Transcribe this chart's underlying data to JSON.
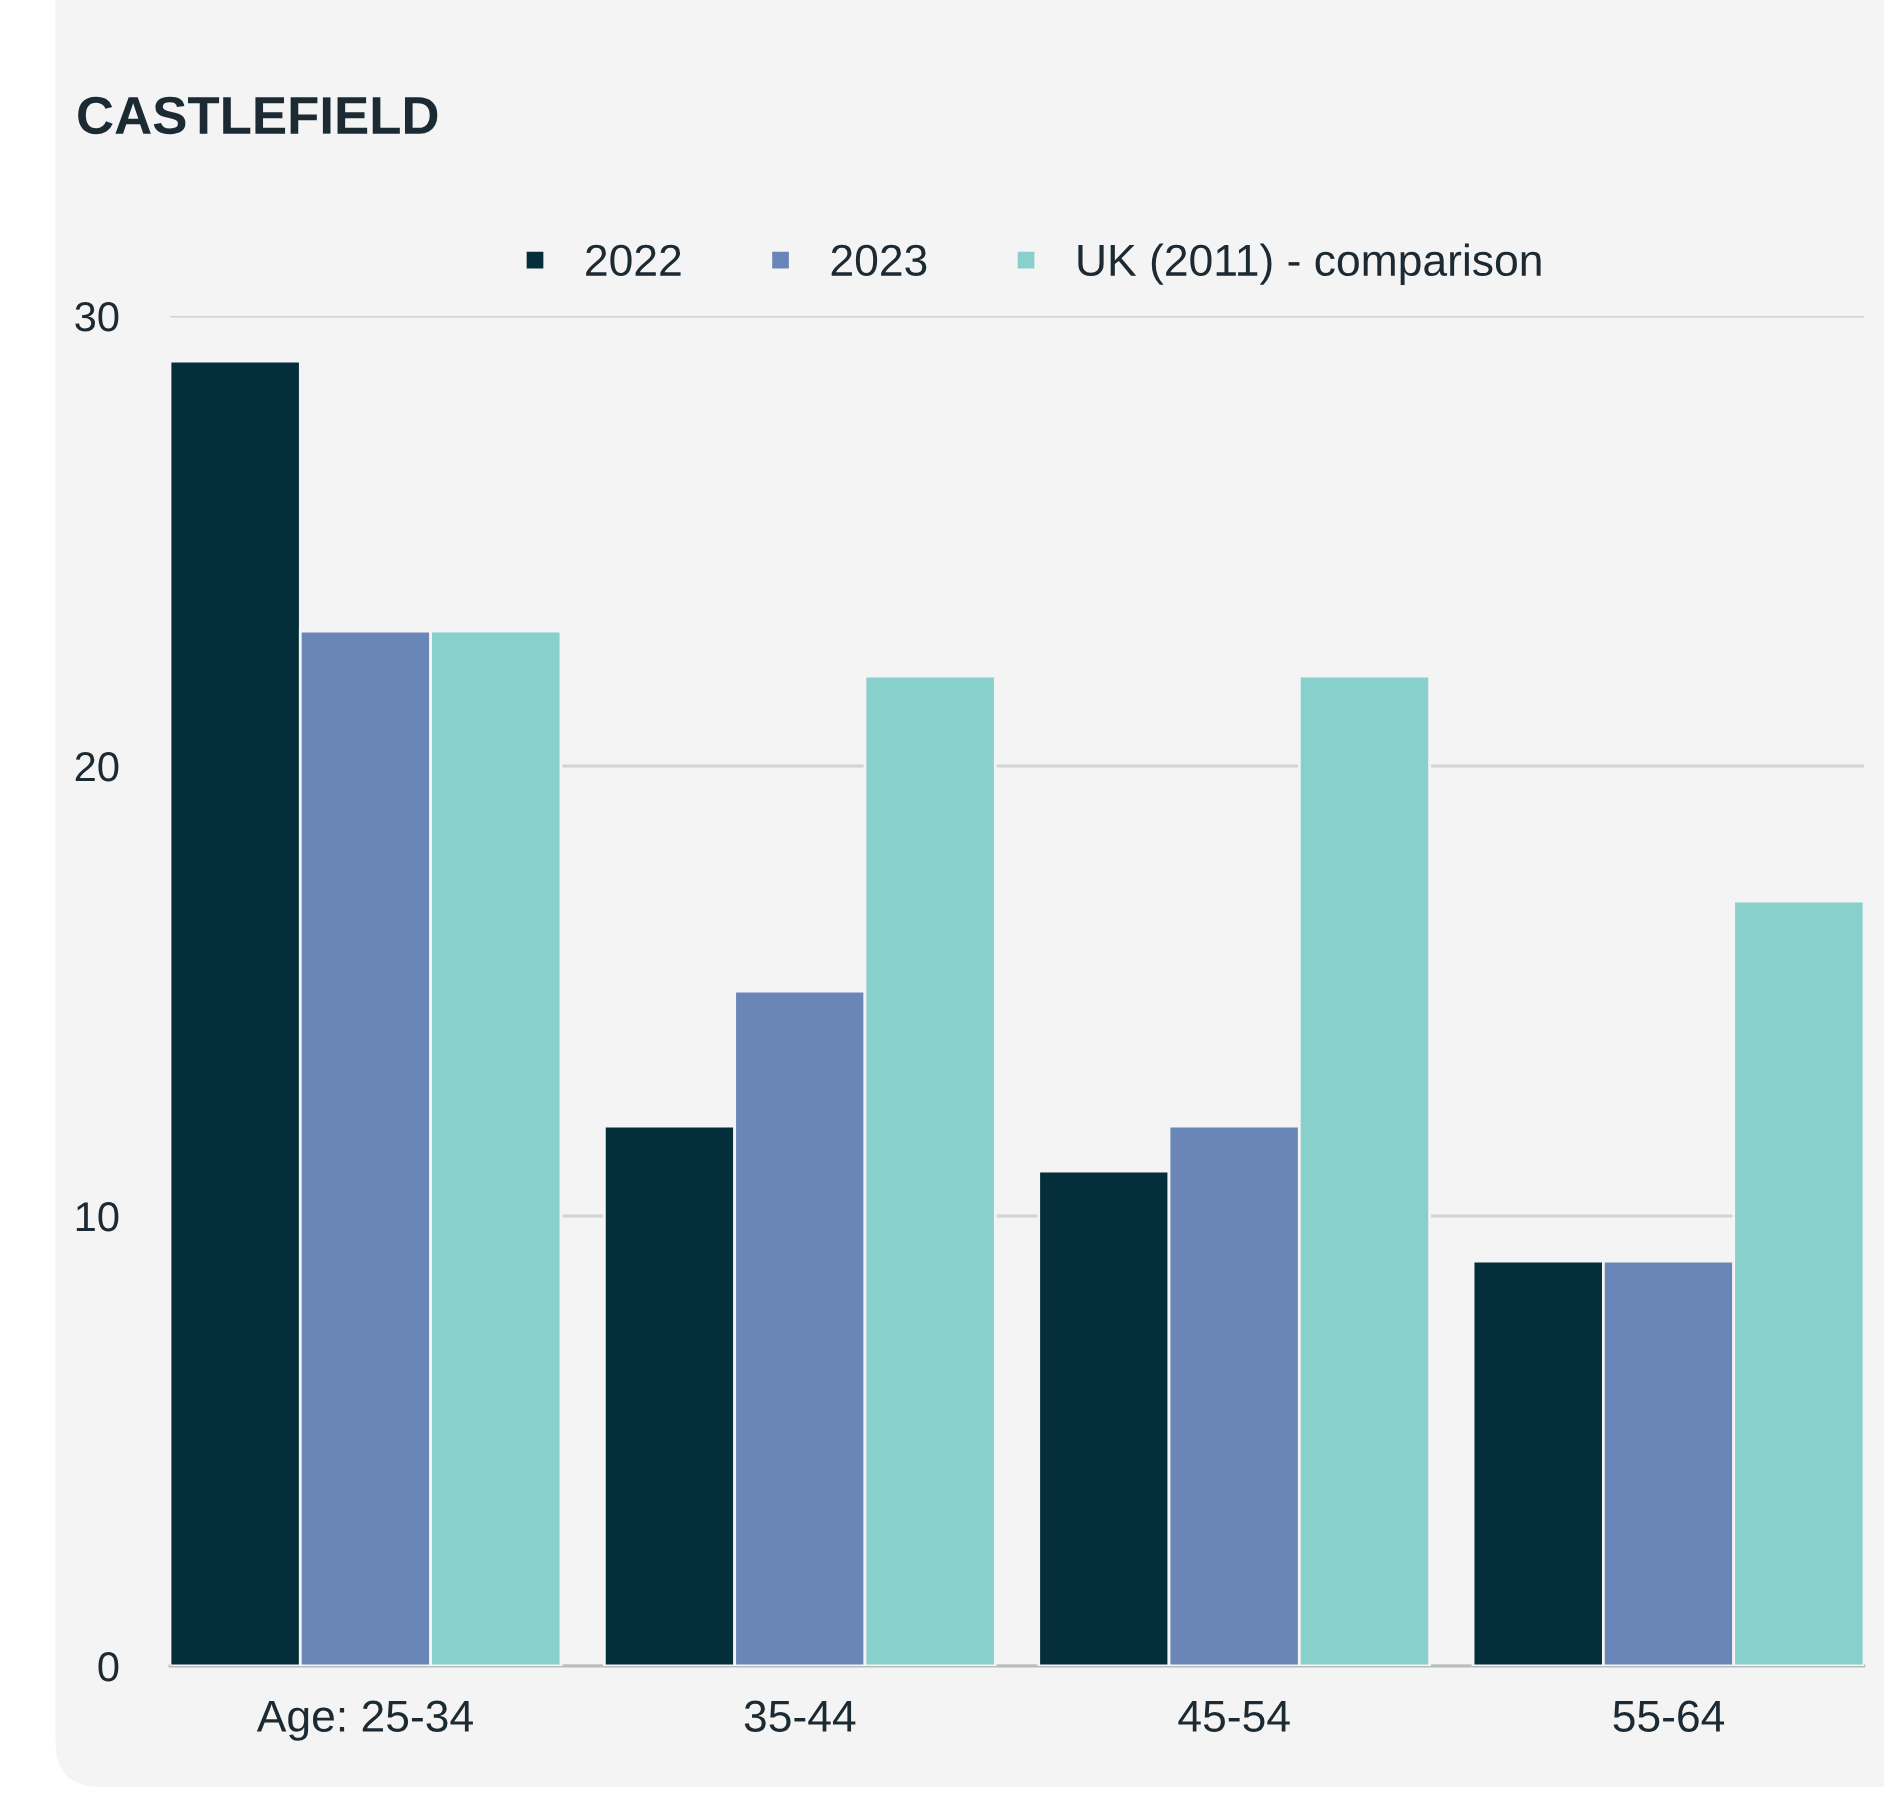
{
  "chart_data": {
    "type": "bar",
    "title": "CASTLEFIELD",
    "categories": [
      "Age: 25-34",
      "35-44",
      "45-54",
      "55-64"
    ],
    "series": [
      {
        "name": "2022",
        "color": "#052e3b",
        "values": [
          29,
          12,
          11,
          9
        ]
      },
      {
        "name": "2023",
        "color": "#6a86b8",
        "values": [
          23,
          15,
          12,
          9
        ]
      },
      {
        "name": "UK (2011) - comparison",
        "color": "#87d0cb",
        "values": [
          23,
          22,
          22,
          17
        ]
      }
    ],
    "ylim": [
      0,
      30
    ],
    "yticks": [
      0,
      10,
      20,
      30
    ],
    "grid": "y",
    "legend": "top"
  }
}
